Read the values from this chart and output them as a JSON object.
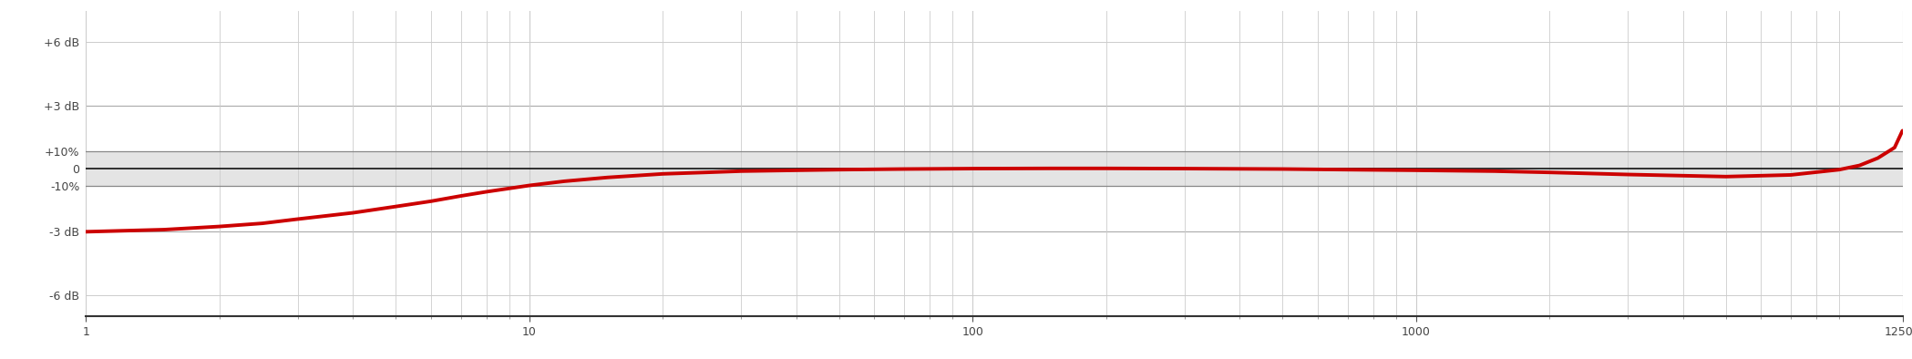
{
  "xmin": 1,
  "xmax": 12500,
  "xticks": [
    1,
    10,
    100,
    1000,
    12500
  ],
  "ytick_positions": [
    6,
    3,
    0.828,
    0,
    -0.828,
    -3,
    -6
  ],
  "ytick_labels": [
    "+6 dB",
    "+3 dB",
    "+10%",
    "0",
    "-10%",
    "-3 dB",
    "-6 dB"
  ],
  "band_ymin": -0.828,
  "band_ymax": 0.828,
  "band_color": "#e4e4e4",
  "band_border_color": "#888888",
  "zero_line_color": "#111111",
  "horizontal_line_color": "#aaaaaa",
  "grid_color": "#cccccc",
  "line_color": "#cc0000",
  "line_width": 2.8,
  "bg_color": "#ffffff",
  "ymin": -7.0,
  "ymax": 7.5,
  "curve_x": [
    1,
    1.5,
    2,
    2.5,
    3,
    4,
    5,
    6,
    7,
    8,
    10,
    12,
    15,
    20,
    25,
    30,
    40,
    50,
    70,
    100,
    150,
    200,
    300,
    500,
    700,
    1000,
    1500,
    2000,
    3000,
    5000,
    7000,
    9000,
    10000,
    11000,
    12000,
    12500
  ],
  "curve_y": [
    -3.0,
    -2.9,
    -2.75,
    -2.6,
    -2.4,
    -2.1,
    -1.8,
    -1.55,
    -1.3,
    -1.1,
    -0.8,
    -0.6,
    -0.42,
    -0.25,
    -0.18,
    -0.12,
    -0.08,
    -0.05,
    -0.02,
    0.0,
    0.01,
    0.01,
    0.0,
    -0.02,
    -0.05,
    -0.08,
    -0.12,
    -0.18,
    -0.28,
    -0.38,
    -0.3,
    -0.05,
    0.15,
    0.5,
    1.0,
    1.8
  ]
}
